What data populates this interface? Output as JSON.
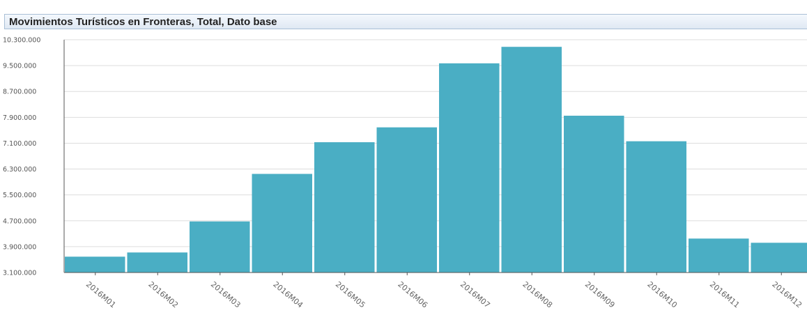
{
  "header": {
    "title": "Movimientos Turísticos en Fronteras, Total, Dato base"
  },
  "colors": {
    "bar": "#4aaec4",
    "grid": "#dddddd",
    "axis": "#555555",
    "header_border": "#a9bfd6"
  },
  "chart_data": {
    "type": "bar",
    "title": "Movimientos Turísticos en Fronteras, Total, Dato base",
    "xlabel": "",
    "ylabel": "",
    "categories": [
      "2016M01",
      "2016M02",
      "2016M03",
      "2016M04",
      "2016M05",
      "2016M06",
      "2016M07",
      "2016M08",
      "2016M09",
      "2016M10",
      "2016M11",
      "2016M12"
    ],
    "y_tick_labels": [
      "10.300.000",
      "9.500.000",
      "8.700.000",
      "7.900.000",
      "7.100.000",
      "6.300.000",
      "5.500.000",
      "4.700.000",
      "3.900.000",
      "3.100.000"
    ],
    "values": [
      3590000,
      3720000,
      4680000,
      6150000,
      7130000,
      7590000,
      9570000,
      10080000,
      7950000,
      7160000,
      4150000,
      4020000
    ],
    "ylim": [
      3100000,
      10300000
    ],
    "grid": true,
    "legend": "none"
  }
}
